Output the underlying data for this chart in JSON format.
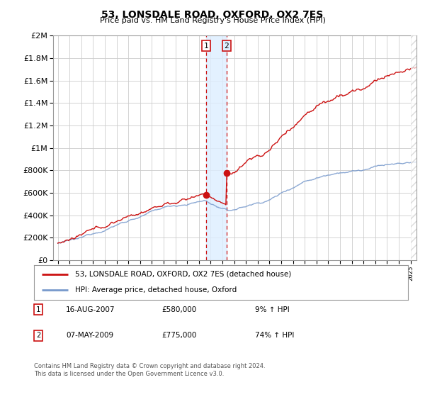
{
  "title": "53, LONSDALE ROAD, OXFORD, OX2 7ES",
  "subtitle": "Price paid vs. HM Land Registry's House Price Index (HPI)",
  "legend_line1": "53, LONSDALE ROAD, OXFORD, OX2 7ES (detached house)",
  "legend_line2": "HPI: Average price, detached house, Oxford",
  "transaction1_date": "16-AUG-2007",
  "transaction1_price": "£580,000",
  "transaction1_hpi": "9% ↑ HPI",
  "transaction2_date": "07-MAY-2009",
  "transaction2_price": "£775,000",
  "transaction2_hpi": "74% ↑ HPI",
  "footnote": "Contains HM Land Registry data © Crown copyright and database right 2024.\nThis data is licensed under the Open Government Licence v3.0.",
  "hpi_color": "#7799cc",
  "price_color": "#cc1111",
  "shading_color": "#ddeeff",
  "background_color": "#ffffff",
  "grid_color": "#cccccc",
  "ylim_max": 2000000,
  "ylim_min": 0,
  "transaction1_year": 2007.625,
  "transaction2_year": 2009.354,
  "transaction1_value": 580000,
  "transaction2_value": 775000
}
